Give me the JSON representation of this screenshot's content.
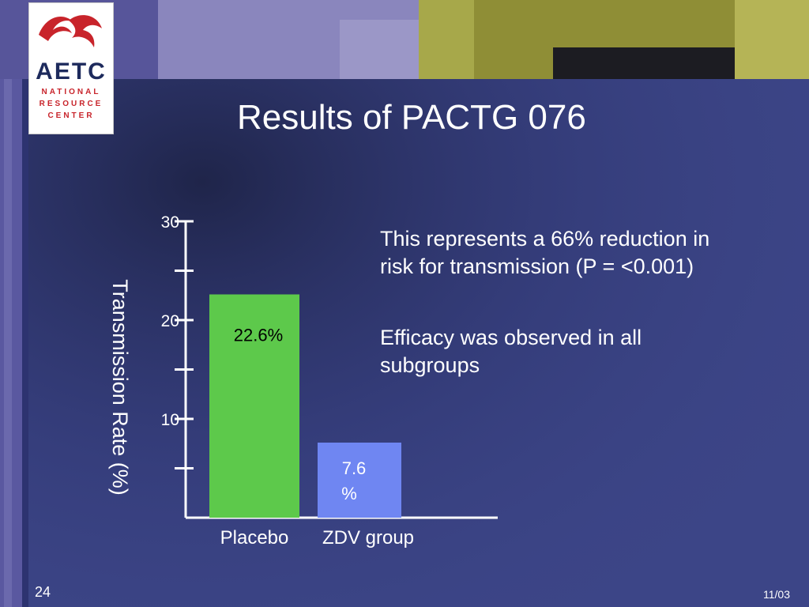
{
  "title": "Results of PACTG 076",
  "logo": {
    "word": "AETC",
    "lines": [
      "NATIONAL",
      "RESOURCE",
      "CENTER"
    ]
  },
  "annotations": [
    "This represents a 66% reduction in risk for transmission (P = <0.001)",
    "Efficacy was observed in all subgroups"
  ],
  "footer": {
    "slide_number": "24",
    "date": "11/03"
  },
  "colors": {
    "background": "#3c4587",
    "placebo_bar": "#5dc94b",
    "zdv_bar": "#6f86f2",
    "accent": "#c8242b"
  },
  "chart_data": {
    "type": "bar",
    "title": "",
    "xlabel": "",
    "ylabel": "Transmission Rate (%)",
    "ylim": [
      0,
      30
    ],
    "yticks": [
      "10",
      "20",
      "30"
    ],
    "categories": [
      "Placebo",
      "ZDV group"
    ],
    "values": [
      22.6,
      7.6
    ],
    "data_labels": [
      "22.6%",
      "7.6 %"
    ]
  }
}
